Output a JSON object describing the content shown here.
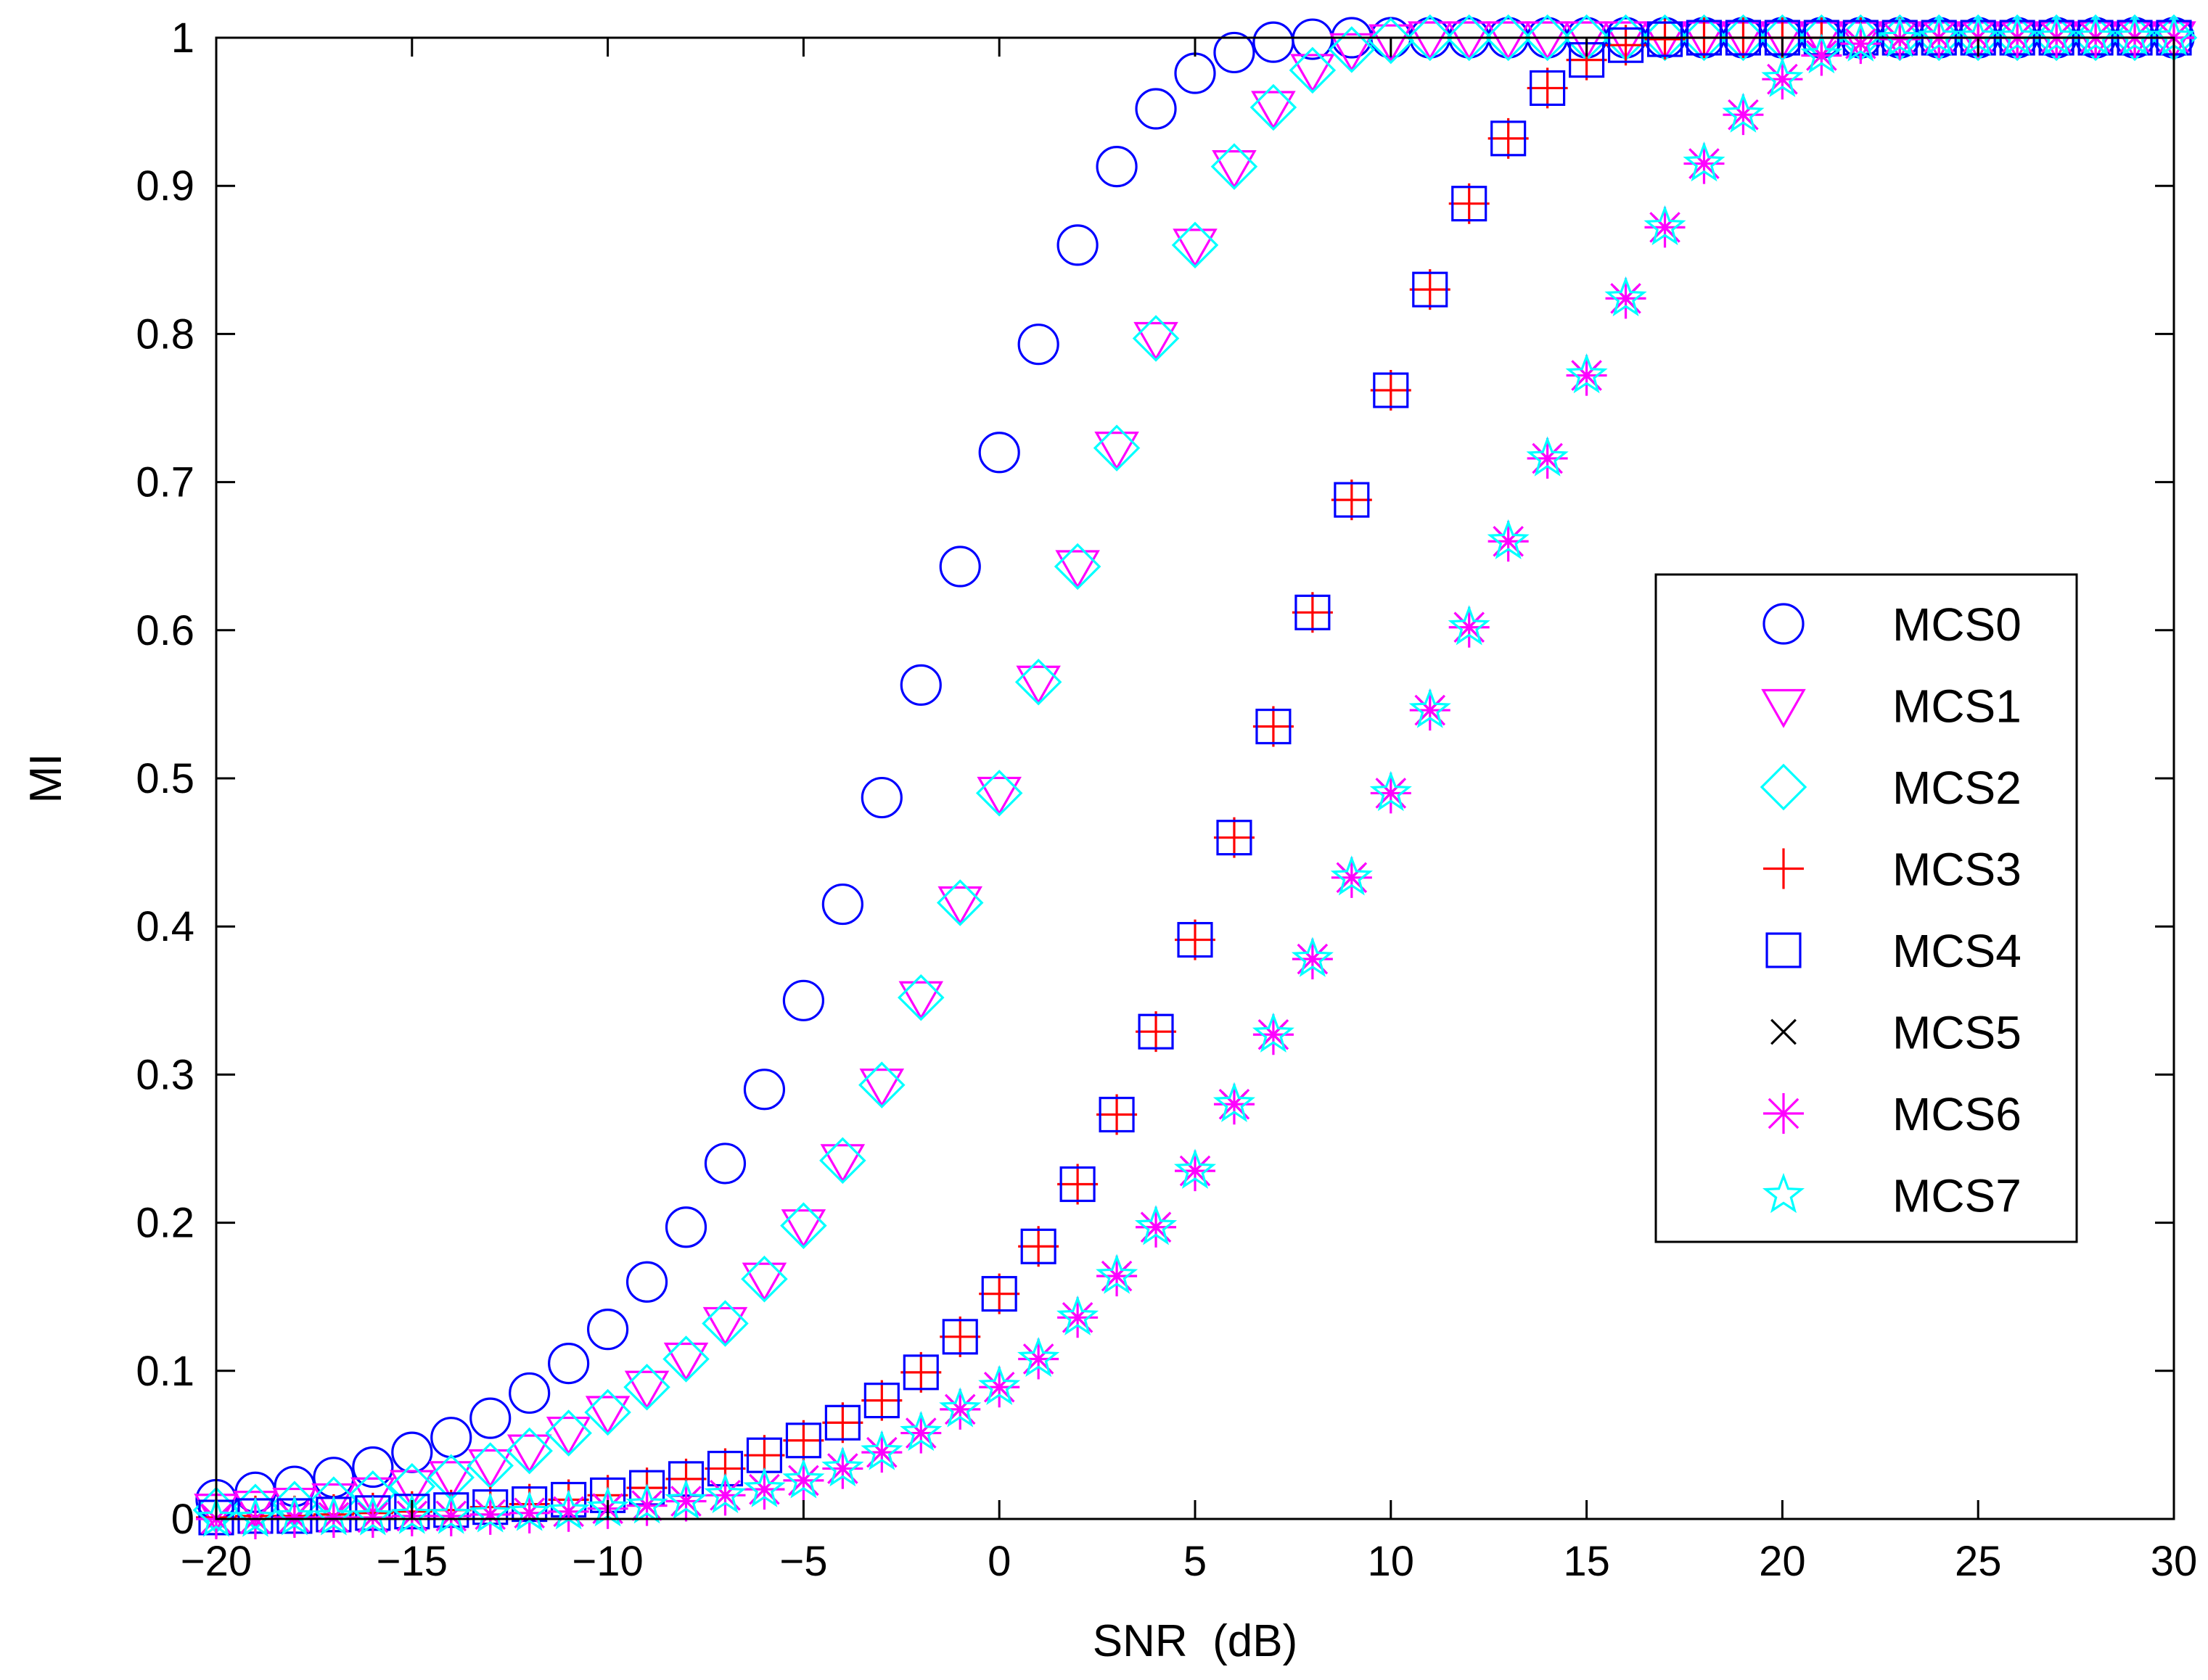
{
  "chart_data": {
    "type": "scatter",
    "title": "",
    "xlabel": "SNR  (dB)",
    "ylabel": "MI",
    "xlim": [
      -20,
      30
    ],
    "ylim": [
      0,
      1
    ],
    "xticks": [
      -20,
      -15,
      -10,
      -5,
      0,
      5,
      10,
      15,
      20,
      25,
      30
    ],
    "xtick_labels": [
      "−20",
      "−15",
      "−10",
      "−5",
      "0",
      "5",
      "10",
      "15",
      "20",
      "25",
      "30"
    ],
    "yticks": [
      0,
      0.1,
      0.2,
      0.3,
      0.4,
      0.5,
      0.6,
      0.7,
      0.8,
      0.9,
      1
    ],
    "ytick_labels": [
      "0",
      "0.1",
      "0.2",
      "0.3",
      "0.4",
      "0.5",
      "0.6",
      "0.7",
      "0.8",
      "0.9",
      "1"
    ],
    "grid": false,
    "legend_position": "right",
    "x": [
      -20,
      -19,
      -18,
      -17,
      -16,
      -15,
      -14,
      -13,
      -12,
      -11,
      -10,
      -9,
      -8,
      -7,
      -6,
      -5,
      -4,
      -3,
      -2,
      -1,
      0,
      1,
      2,
      3,
      4,
      5,
      6,
      7,
      8,
      9,
      10,
      11,
      12,
      13,
      14,
      15,
      16,
      17,
      18,
      19,
      20,
      21,
      22,
      23,
      24,
      25,
      26,
      27,
      28,
      29,
      30
    ],
    "series": [
      {
        "name": "MCS0",
        "marker": "circle",
        "color": "#0000ff",
        "values": [
          0.013,
          0.018,
          0.022,
          0.028,
          0.035,
          0.045,
          0.055,
          0.068,
          0.085,
          0.105,
          0.128,
          0.16,
          0.197,
          0.24,
          0.29,
          0.35,
          0.415,
          0.487,
          0.563,
          0.643,
          0.72,
          0.793,
          0.86,
          0.913,
          0.952,
          0.976,
          0.99,
          0.997,
          0.999,
          1,
          1,
          1,
          1,
          1,
          1,
          1,
          1,
          1,
          1,
          1,
          1,
          1,
          1,
          1,
          1,
          1,
          1,
          1,
          1,
          1,
          1
        ]
      },
      {
        "name": "MCS1",
        "marker": "triangle-down",
        "color": "#ff00ff",
        "values": [
          0.006,
          0.008,
          0.01,
          0.013,
          0.017,
          0.022,
          0.028,
          0.036,
          0.046,
          0.058,
          0.072,
          0.089,
          0.108,
          0.132,
          0.162,
          0.198,
          0.242,
          0.293,
          0.352,
          0.416,
          0.49,
          0.565,
          0.643,
          0.723,
          0.797,
          0.86,
          0.913,
          0.953,
          0.978,
          0.992,
          0.998,
          1,
          1,
          1,
          1,
          1,
          1,
          1,
          1,
          1,
          1,
          1,
          1,
          1,
          1,
          1,
          1,
          1,
          1,
          1,
          1
        ]
      },
      {
        "name": "MCS2",
        "marker": "diamond",
        "color": "#00ffff",
        "values": [
          0.006,
          0.008,
          0.01,
          0.013,
          0.017,
          0.022,
          0.028,
          0.036,
          0.046,
          0.058,
          0.072,
          0.089,
          0.108,
          0.132,
          0.162,
          0.198,
          0.242,
          0.293,
          0.352,
          0.416,
          0.49,
          0.565,
          0.643,
          0.723,
          0.797,
          0.86,
          0.913,
          0.953,
          0.978,
          0.992,
          0.998,
          1,
          1,
          1,
          1,
          1,
          1,
          1,
          1,
          1,
          1,
          1,
          1,
          1,
          1,
          1,
          1,
          1,
          1,
          1,
          1
        ]
      },
      {
        "name": "MCS3",
        "marker": "plus",
        "color": "#ff0000",
        "values": [
          0.001,
          0.002,
          0.002,
          0.003,
          0.004,
          0.005,
          0.006,
          0.008,
          0.01,
          0.013,
          0.016,
          0.021,
          0.027,
          0.034,
          0.043,
          0.053,
          0.065,
          0.08,
          0.099,
          0.123,
          0.152,
          0.184,
          0.226,
          0.273,
          0.329,
          0.391,
          0.46,
          0.535,
          0.612,
          0.688,
          0.762,
          0.83,
          0.888,
          0.932,
          0.966,
          0.985,
          0.995,
          0.999,
          1,
          1,
          1,
          1,
          1,
          1,
          1,
          1,
          1,
          1,
          1,
          1,
          1
        ]
      },
      {
        "name": "MCS4",
        "marker": "square",
        "color": "#0000ff",
        "values": [
          0.001,
          0.002,
          0.002,
          0.003,
          0.004,
          0.005,
          0.006,
          0.008,
          0.01,
          0.013,
          0.016,
          0.021,
          0.027,
          0.034,
          0.043,
          0.053,
          0.065,
          0.08,
          0.099,
          0.123,
          0.152,
          0.184,
          0.226,
          0.273,
          0.329,
          0.391,
          0.46,
          0.535,
          0.612,
          0.688,
          0.762,
          0.83,
          0.888,
          0.932,
          0.966,
          0.985,
          0.995,
          0.999,
          1,
          1,
          1,
          1,
          1,
          1,
          1,
          1,
          1,
          1,
          1,
          1,
          1
        ]
      },
      {
        "name": "MCS5",
        "marker": "x",
        "color": "#000000",
        "values": [
          0,
          0,
          0.001,
          0.001,
          0.001,
          0.002,
          0.002,
          0.003,
          0.004,
          0.005,
          0.007,
          0.009,
          0.012,
          0.016,
          0.02,
          0.026,
          0.034,
          0.045,
          0.058,
          0.074,
          0.089,
          0.108,
          0.136,
          0.164,
          0.197,
          0.235,
          0.28,
          0.327,
          0.378,
          0.433,
          0.49,
          0.546,
          0.602,
          0.66,
          0.716,
          0.772,
          0.824,
          0.872,
          0.915,
          0.948,
          0.972,
          0.988,
          0.996,
          0.999,
          1,
          1,
          1,
          1,
          1,
          1,
          1
        ]
      },
      {
        "name": "MCS6",
        "marker": "asterisk",
        "color": "#ff00ff",
        "values": [
          0,
          0,
          0.001,
          0.001,
          0.001,
          0.002,
          0.002,
          0.003,
          0.004,
          0.005,
          0.007,
          0.009,
          0.012,
          0.016,
          0.02,
          0.026,
          0.034,
          0.045,
          0.058,
          0.074,
          0.089,
          0.108,
          0.136,
          0.164,
          0.197,
          0.235,
          0.28,
          0.327,
          0.378,
          0.433,
          0.49,
          0.546,
          0.602,
          0.66,
          0.716,
          0.772,
          0.824,
          0.872,
          0.915,
          0.948,
          0.972,
          0.988,
          0.996,
          0.999,
          1,
          1,
          1,
          1,
          1,
          1,
          1
        ]
      },
      {
        "name": "MCS7",
        "marker": "star",
        "color": "#00ffff",
        "values": [
          0,
          0,
          0.001,
          0.001,
          0.001,
          0.002,
          0.002,
          0.003,
          0.004,
          0.005,
          0.007,
          0.009,
          0.012,
          0.016,
          0.02,
          0.026,
          0.034,
          0.045,
          0.058,
          0.074,
          0.089,
          0.108,
          0.136,
          0.164,
          0.197,
          0.235,
          0.28,
          0.327,
          0.378,
          0.433,
          0.49,
          0.546,
          0.602,
          0.66,
          0.716,
          0.772,
          0.824,
          0.872,
          0.915,
          0.948,
          0.972,
          0.988,
          0.996,
          0.999,
          1,
          1,
          1,
          1,
          1,
          1,
          1
        ]
      }
    ]
  }
}
